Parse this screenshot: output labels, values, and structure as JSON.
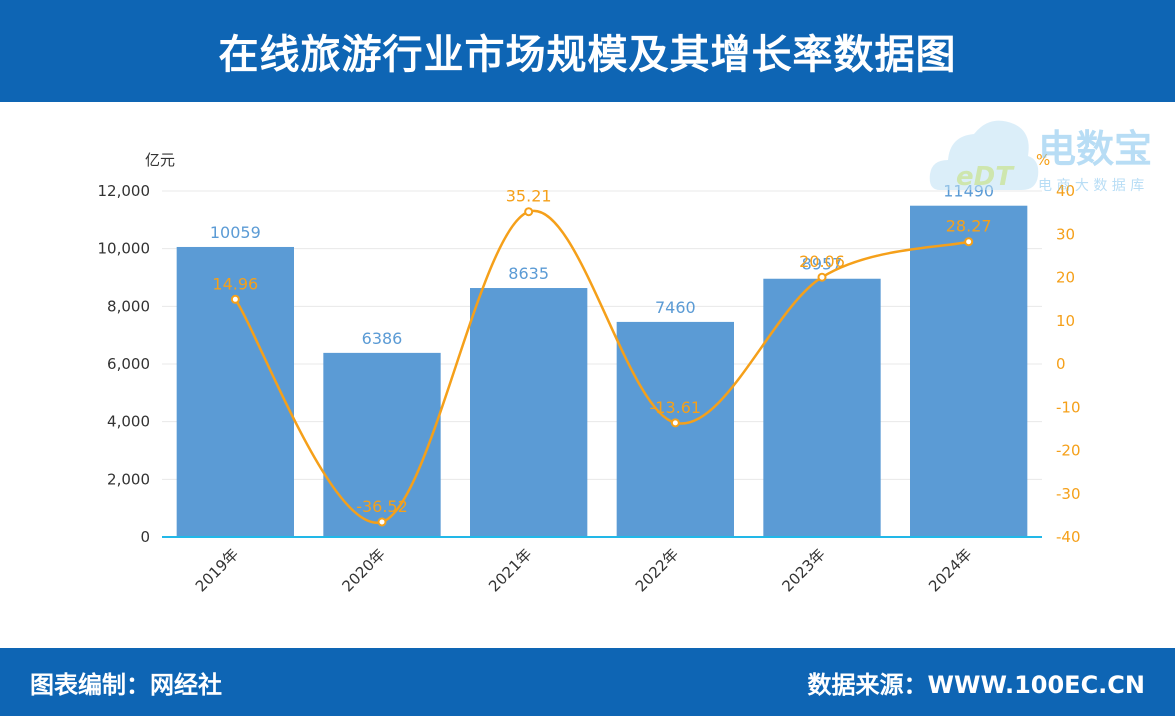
{
  "header": {
    "title": "在线旅游行业市场规模及其增长率数据图"
  },
  "footer": {
    "compiled_by": "图表编制：网经社",
    "source": "数据来源：WWW.100EC.CN"
  },
  "watermark": {
    "brand": "电数宝",
    "tagline": "电 商 大 数 据 库",
    "logo_text": "eDT"
  },
  "colors": {
    "bar": "#5b9bd5",
    "line": "#f5a01a",
    "bar_label": "#5b9bd5",
    "line_label": "#f5a01a",
    "header": "#0e65b4",
    "axis": "#22b8e8"
  },
  "chart_data": {
    "type": "bar",
    "categories": [
      "2019年",
      "2020年",
      "2021年",
      "2022年",
      "2023年",
      "2024年"
    ],
    "series": [
      {
        "type": "bar",
        "values": [
          10059,
          6386,
          8635,
          7460,
          8957,
          11490
        ],
        "labels": [
          "10059",
          "6386",
          "8635",
          "7460",
          "8957",
          "11490"
        ]
      },
      {
        "type": "line",
        "smooth": true,
        "values": [
          14.96,
          -36.52,
          35.21,
          -13.61,
          20.06,
          28.27
        ],
        "labels": [
          "14.96",
          "-36.52",
          "35.21",
          "-13.61",
          "20.06",
          "28.27"
        ]
      }
    ],
    "y_left": {
      "unit": "亿元",
      "min": 0,
      "max": 12000,
      "ticks": [
        "0",
        "2,000",
        "4,000",
        "6,000",
        "8,000",
        "10,000",
        "12,000"
      ]
    },
    "y_right": {
      "unit": "%",
      "min": -40,
      "max": 40,
      "ticks": [
        "-40",
        "-30",
        "-20",
        "-10",
        "0",
        "10",
        "20",
        "30",
        "40"
      ]
    },
    "grid": true,
    "legend": "none"
  }
}
